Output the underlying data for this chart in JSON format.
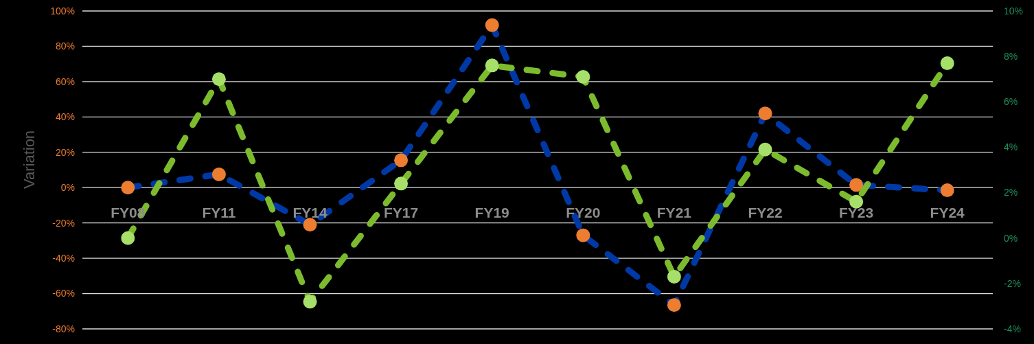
{
  "chart_data": {
    "type": "line",
    "ylabel": "Variation",
    "categories": [
      "FY08",
      "FY11",
      "FY14",
      "FY17",
      "FY19",
      "FY20",
      "FY21",
      "FY22",
      "FY23",
      "FY24"
    ],
    "series": [
      {
        "color": "#0039a6",
        "colors": [
          "#ed7d31",
          "#ed7d31",
          "#ed7d31",
          "#ed7d31",
          "#ed7d31",
          "#ed7d31",
          "#ed7d31",
          "#ed7d31",
          "#ed7d31",
          "#ed7d31"
        ],
        "values": [
          0,
          7.5,
          -21,
          15.5,
          92,
          -27,
          -66.5,
          42,
          1.5,
          -1.5
        ]
      },
      {
        "color": "#7dbb2e",
        "colors": [
          "#a6e06a",
          "#a6e06a",
          "#a6e06a",
          "#a6e06a",
          "#a6e06a",
          "#a6e06a",
          "#a6e06a",
          "#a6e06a",
          "#a6e06a",
          "#a6e06a"
        ],
        "axis": "y2",
        "values": [
          0,
          7,
          -2.8,
          2.4,
          7.6,
          7.1,
          -1.7,
          3.9,
          1.6,
          7.7
        ]
      }
    ],
    "ylim": [
      -80,
      100
    ],
    "yticks": [
      {
        "value": -80,
        "label": "-80%"
      },
      {
        "value": -60,
        "label": "-60%"
      },
      {
        "value": -40,
        "label": "-40%"
      },
      {
        "value": -20,
        "label": "-20%"
      },
      {
        "value": 0,
        "label": "0%"
      },
      {
        "value": 20,
        "label": "20%"
      },
      {
        "value": 40,
        "label": "40%"
      },
      {
        "value": 60,
        "label": "60%"
      },
      {
        "value": 80,
        "label": "80%"
      },
      {
        "value": 100,
        "label": "100%"
      }
    ],
    "y2lim": [
      -4,
      10
    ],
    "y2ticks": [
      {
        "value": -4,
        "label": "-4%"
      },
      {
        "value": -2,
        "label": "-2%"
      },
      {
        "value": 0,
        "label": "0%"
      },
      {
        "value": 2,
        "label": "2%"
      },
      {
        "value": 4,
        "label": "4%"
      },
      {
        "value": 6,
        "label": "6%"
      },
      {
        "value": 8,
        "label": "8%"
      },
      {
        "value": 10,
        "label": "10%"
      }
    ],
    "grid": "y",
    "marker": "circle",
    "line_style": "dashed"
  }
}
